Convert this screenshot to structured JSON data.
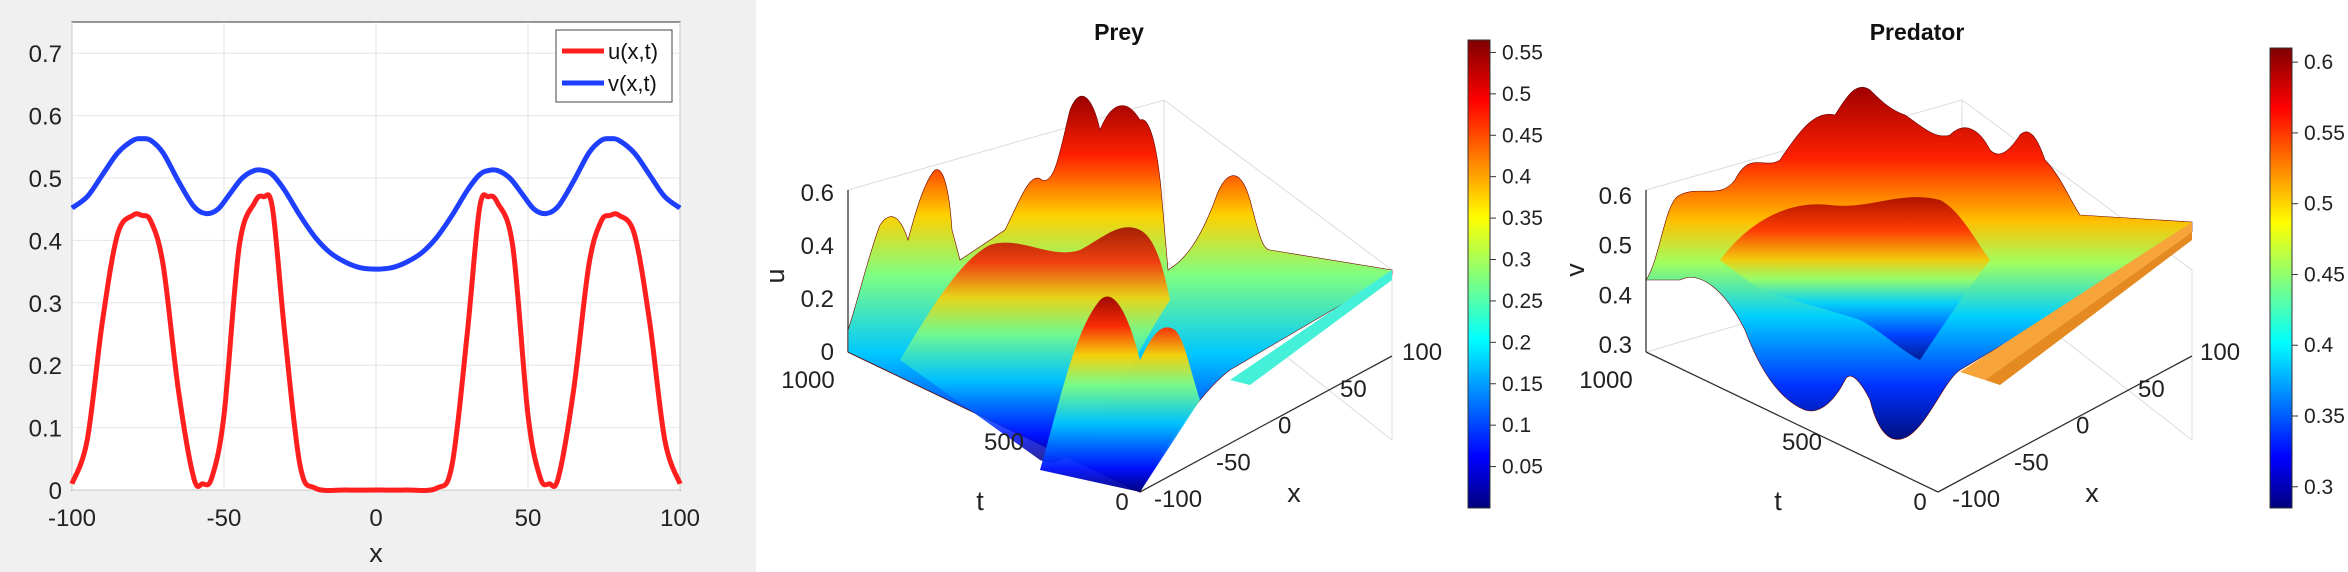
{
  "colors": {
    "u": "#ff1f1f",
    "v": "#1f3fff",
    "left_background": "#f0f0f0",
    "colormap": "jet"
  },
  "chart_data": [
    {
      "type": "line",
      "title": "",
      "xlabel": "x",
      "ylabel": "",
      "xlim": [
        -100,
        100
      ],
      "ylim": [
        0,
        0.75
      ],
      "xticks": [
        "-100",
        "-50",
        "0",
        "50",
        "100"
      ],
      "yticks": [
        "0",
        "0.1",
        "0.2",
        "0.3",
        "0.4",
        "0.5",
        "0.6",
        "0.7"
      ],
      "grid": true,
      "legend_position": "top-right",
      "series": [
        {
          "name": "u(x,t)",
          "x": [
            -100,
            -95,
            -90,
            -85,
            -80,
            -77,
            -74,
            -70,
            -65,
            -60,
            -57,
            -54,
            -50,
            -45,
            -40,
            -37,
            -34,
            -30,
            -25,
            -20,
            -10,
            0,
            10,
            20,
            25,
            30,
            34,
            37,
            40,
            45,
            50,
            54,
            57,
            60,
            65,
            70,
            74,
            77,
            80,
            85,
            90,
            95,
            100
          ],
          "values": [
            0.01,
            0.08,
            0.27,
            0.41,
            0.44,
            0.44,
            0.43,
            0.36,
            0.16,
            0.02,
            0.01,
            0.02,
            0.12,
            0.39,
            0.46,
            0.47,
            0.45,
            0.25,
            0.04,
            0.003,
            0.0,
            0.0,
            0.0,
            0.003,
            0.04,
            0.25,
            0.45,
            0.47,
            0.46,
            0.39,
            0.12,
            0.02,
            0.01,
            0.02,
            0.16,
            0.36,
            0.43,
            0.44,
            0.44,
            0.41,
            0.27,
            0.08,
            0.01
          ]
        },
        {
          "name": "v(x,t)",
          "x": [
            -100,
            -95,
            -90,
            -85,
            -80,
            -77,
            -74,
            -70,
            -65,
            -60,
            -56,
            -52,
            -48,
            -44,
            -40,
            -37,
            -34,
            -30,
            -25,
            -20,
            -15,
            -10,
            -5,
            0,
            5,
            10,
            15,
            20,
            25,
            30,
            34,
            37,
            40,
            44,
            48,
            52,
            56,
            60,
            65,
            70,
            74,
            77,
            80,
            85,
            90,
            95,
            100
          ],
          "values": [
            0.452,
            0.47,
            0.505,
            0.54,
            0.56,
            0.563,
            0.56,
            0.54,
            0.495,
            0.455,
            0.443,
            0.45,
            0.475,
            0.5,
            0.512,
            0.512,
            0.505,
            0.48,
            0.44,
            0.405,
            0.38,
            0.365,
            0.356,
            0.354,
            0.356,
            0.365,
            0.38,
            0.405,
            0.44,
            0.48,
            0.505,
            0.512,
            0.512,
            0.5,
            0.475,
            0.45,
            0.443,
            0.455,
            0.495,
            0.54,
            0.56,
            0.563,
            0.56,
            0.54,
            0.505,
            0.47,
            0.452
          ]
        }
      ]
    },
    {
      "type": "surface",
      "title": "Prey",
      "xlabel": "x",
      "ylabel": "t",
      "zlabel": "u",
      "xticks": [
        "-100",
        "-50",
        "0",
        "50",
        "100"
      ],
      "yticks": [
        "0",
        "500",
        "1000"
      ],
      "zticks": [
        "0",
        "0.2",
        "0.4",
        "0.6"
      ],
      "colorbar": {
        "range": [
          0.0,
          0.565
        ],
        "ticks": [
          "0.05",
          "0.1",
          "0.15",
          "0.2",
          "0.25",
          "0.3",
          "0.35",
          "0.4",
          "0.45",
          "0.5",
          "0.55"
        ]
      }
    },
    {
      "type": "surface",
      "title": "Predator",
      "xlabel": "x",
      "ylabel": "t",
      "zlabel": "v",
      "xticks": [
        "-100",
        "-50",
        "0",
        "50",
        "100"
      ],
      "yticks": [
        "0",
        "500",
        "1000"
      ],
      "zticks": [
        "0.3",
        "0.4",
        "0.5",
        "0.6"
      ],
      "colorbar": {
        "range": [
          0.285,
          0.61
        ],
        "ticks": [
          "0.3",
          "0.35",
          "0.4",
          "0.45",
          "0.5",
          "0.55",
          "0.6"
        ]
      }
    }
  ]
}
